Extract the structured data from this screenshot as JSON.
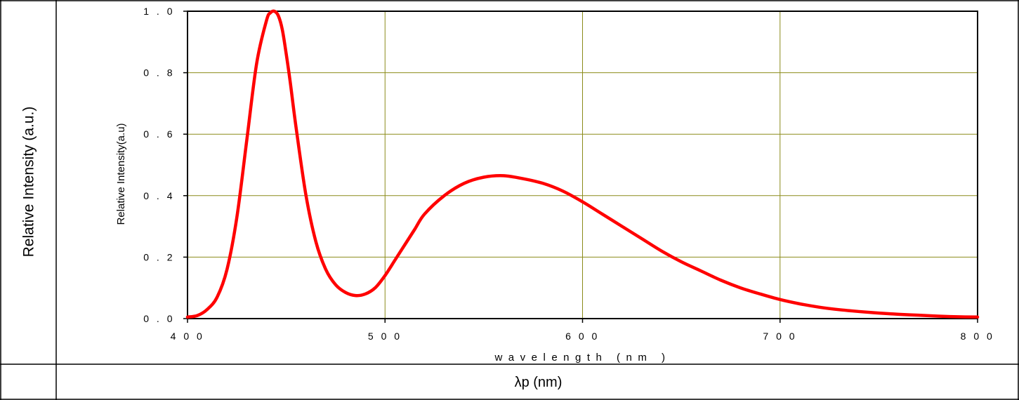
{
  "table": {
    "left_label": "Relative Intensity (a.u.)",
    "bottom_label": "λp (nm)"
  },
  "chart_data": {
    "type": "line",
    "title": "",
    "xlabel": "wavelength (nm )",
    "ylabel": "Relative Intensity(a.u)",
    "xlim": [
      400,
      800
    ],
    "ylim": [
      0,
      1.0
    ],
    "x_ticks": [
      400,
      500,
      600,
      700,
      800
    ],
    "x_tick_labels": [
      "4 0 0",
      "5 0 0",
      "6 0 0",
      "7 0 0",
      "8 0 0"
    ],
    "y_ticks": [
      0,
      0.2,
      0.4,
      0.6,
      0.8,
      1.0
    ],
    "y_tick_labels": [
      "0 . 0",
      "0 . 2",
      "0 . 4",
      "0 . 6",
      "0 . 8",
      "1 . 0"
    ],
    "grid": true,
    "grid_color": "#8b8b1a",
    "line_color": "#ff0000",
    "series": [
      {
        "name": "",
        "x": [
          400,
          405,
          410,
          415,
          420,
          425,
          430,
          435,
          440,
          442,
          444,
          446,
          448,
          450,
          452,
          455,
          460,
          465,
          470,
          475,
          480,
          485,
          490,
          495,
          500,
          505,
          510,
          515,
          520,
          530,
          540,
          550,
          560,
          570,
          580,
          590,
          600,
          610,
          620,
          630,
          640,
          650,
          660,
          670,
          680,
          690,
          700,
          710,
          720,
          730,
          740,
          750,
          760,
          770,
          780,
          790,
          800
        ],
        "y": [
          0.005,
          0.01,
          0.03,
          0.07,
          0.16,
          0.33,
          0.58,
          0.83,
          0.97,
          0.995,
          1.0,
          0.985,
          0.94,
          0.86,
          0.77,
          0.62,
          0.4,
          0.25,
          0.16,
          0.11,
          0.085,
          0.075,
          0.08,
          0.1,
          0.14,
          0.19,
          0.24,
          0.29,
          0.34,
          0.4,
          0.44,
          0.46,
          0.465,
          0.455,
          0.44,
          0.415,
          0.38,
          0.34,
          0.3,
          0.26,
          0.22,
          0.185,
          0.155,
          0.125,
          0.1,
          0.08,
          0.062,
          0.048,
          0.037,
          0.029,
          0.023,
          0.018,
          0.014,
          0.011,
          0.008,
          0.006,
          0.005
        ]
      }
    ]
  }
}
